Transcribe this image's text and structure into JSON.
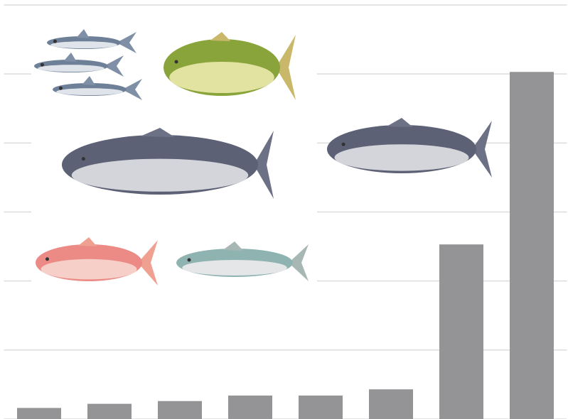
{
  "chart_data": {
    "type": "bar",
    "categories": [
      null,
      null,
      null,
      null,
      null,
      null,
      null,
      null
    ],
    "values": [
      0.16,
      0.22,
      0.26,
      0.34,
      0.34,
      0.43,
      2.53,
      5.03
    ],
    "color": "#949497",
    "ylim": [
      0,
      6
    ],
    "yticks": [
      0,
      1,
      2,
      3,
      4,
      5,
      6
    ],
    "grid": true
  }
}
